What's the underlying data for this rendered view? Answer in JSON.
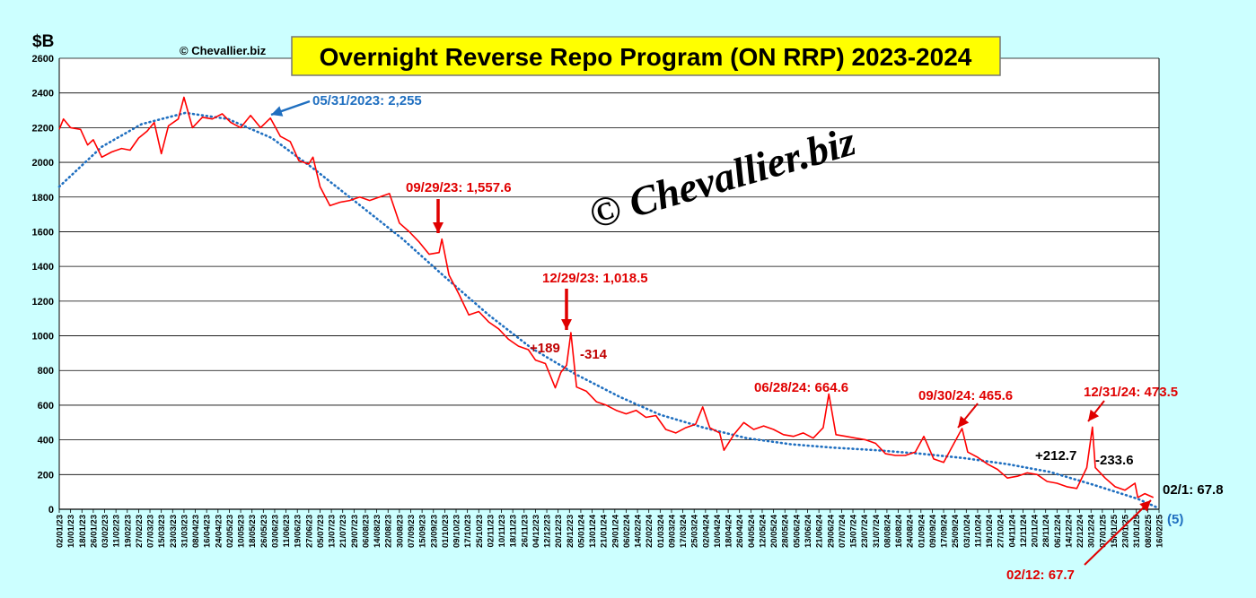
{
  "chart_data": {
    "type": "line",
    "title": "Overnight Reverse Repo Program (ON RRP) 2023-2024",
    "ylabel": "$B",
    "ylim": [
      0,
      2600
    ],
    "yticks": [
      0,
      200,
      400,
      600,
      800,
      1000,
      1200,
      1400,
      1600,
      1800,
      2000,
      2200,
      2400,
      2600
    ],
    "grid": "horizontal",
    "copyright_small": "© Chevallier.biz",
    "watermark": "© Chevallier.biz",
    "x_range": [
      "2023-01-02",
      "2025-02-16"
    ],
    "x_tick_labels": [
      "02/01/23",
      "10/01/23",
      "18/01/23",
      "26/01/23",
      "03/02/23",
      "11/02/23",
      "19/02/23",
      "27/02/23",
      "07/03/23",
      "15/03/23",
      "23/03/23",
      "31/03/23",
      "08/04/23",
      "16/04/23",
      "24/04/23",
      "02/05/23",
      "10/05/23",
      "18/05/23",
      "26/05/23",
      "03/06/23",
      "11/06/23",
      "19/06/23",
      "27/06/23",
      "05/07/23",
      "13/07/23",
      "21/07/23",
      "29/07/23",
      "06/08/23",
      "14/08/23",
      "22/08/23",
      "30/08/23",
      "07/09/23",
      "15/09/23",
      "23/09/23",
      "01/10/23",
      "09/10/23",
      "17/10/23",
      "25/10/23",
      "02/11/23",
      "10/11/23",
      "18/11/23",
      "26/11/23",
      "04/12/23",
      "12/12/23",
      "20/12/23",
      "28/12/23",
      "05/01/24",
      "13/01/24",
      "21/01/24",
      "29/01/24",
      "06/02/24",
      "14/02/24",
      "22/02/24",
      "01/03/24",
      "09/03/24",
      "17/03/24",
      "25/03/24",
      "02/04/24",
      "10/04/24",
      "18/04/24",
      "26/04/24",
      "04/05/24",
      "12/05/24",
      "20/05/24",
      "28/05/24",
      "05/06/24",
      "13/06/24",
      "21/06/24",
      "29/06/24",
      "07/07/24",
      "15/07/24",
      "23/07/24",
      "31/07/24",
      "08/08/24",
      "16/08/24",
      "24/08/24",
      "01/09/24",
      "09/09/24",
      "17/09/24",
      "25/09/24",
      "03/10/24",
      "11/10/24",
      "19/10/24",
      "27/10/24",
      "04/11/24",
      "12/11/24",
      "20/11/24",
      "28/11/24",
      "06/12/24",
      "14/12/24",
      "22/12/24",
      "30/12/24",
      "07/01/25",
      "15/01/25",
      "23/01/25",
      "31/01/25",
      "08/02/25",
      "16/02/25"
    ],
    "series": [
      {
        "color": "#ff0000",
        "data": [
          [
            "2023-01-02",
            2190
          ],
          [
            "2023-01-05",
            2250
          ],
          [
            "2023-01-10",
            2200
          ],
          [
            "2023-01-17",
            2190
          ],
          [
            "2023-01-22",
            2100
          ],
          [
            "2023-01-26",
            2130
          ],
          [
            "2023-02-01",
            2030
          ],
          [
            "2023-02-08",
            2060
          ],
          [
            "2023-02-15",
            2080
          ],
          [
            "2023-02-21",
            2070
          ],
          [
            "2023-02-27",
            2140
          ],
          [
            "2023-03-05",
            2180
          ],
          [
            "2023-03-10",
            2230
          ],
          [
            "2023-03-15",
            2050
          ],
          [
            "2023-03-20",
            2210
          ],
          [
            "2023-03-27",
            2250
          ],
          [
            "2023-03-31",
            2375
          ],
          [
            "2023-04-06",
            2200
          ],
          [
            "2023-04-13",
            2260
          ],
          [
            "2023-04-20",
            2250
          ],
          [
            "2023-04-27",
            2280
          ],
          [
            "2023-05-03",
            2230
          ],
          [
            "2023-05-10",
            2200
          ],
          [
            "2023-05-17",
            2270
          ],
          [
            "2023-05-24",
            2200
          ],
          [
            "2023-05-31",
            2255
          ],
          [
            "2023-06-07",
            2150
          ],
          [
            "2023-06-14",
            2120
          ],
          [
            "2023-06-20",
            2010
          ],
          [
            "2023-06-27",
            1990
          ],
          [
            "2023-06-30",
            2030
          ],
          [
            "2023-07-05",
            1860
          ],
          [
            "2023-07-12",
            1750
          ],
          [
            "2023-07-19",
            1770
          ],
          [
            "2023-07-26",
            1780
          ],
          [
            "2023-08-02",
            1800
          ],
          [
            "2023-08-09",
            1780
          ],
          [
            "2023-08-16",
            1800
          ],
          [
            "2023-08-23",
            1820
          ],
          [
            "2023-08-30",
            1650
          ],
          [
            "2023-09-06",
            1600
          ],
          [
            "2023-09-13",
            1540
          ],
          [
            "2023-09-20",
            1470
          ],
          [
            "2023-09-27",
            1480
          ],
          [
            "2023-09-29",
            1557.6
          ],
          [
            "2023-10-04",
            1350
          ],
          [
            "2023-10-11",
            1240
          ],
          [
            "2023-10-18",
            1120
          ],
          [
            "2023-10-25",
            1140
          ],
          [
            "2023-11-01",
            1080
          ],
          [
            "2023-11-08",
            1040
          ],
          [
            "2023-11-15",
            980
          ],
          [
            "2023-11-22",
            940
          ],
          [
            "2023-11-29",
            920
          ],
          [
            "2023-12-04",
            860
          ],
          [
            "2023-12-11",
            840
          ],
          [
            "2023-12-18",
            700
          ],
          [
            "2023-12-22",
            790
          ],
          [
            "2023-12-26",
            830
          ],
          [
            "2023-12-29",
            1018.5
          ],
          [
            "2024-01-02",
            704.5
          ],
          [
            "2024-01-09",
            680
          ],
          [
            "2024-01-16",
            620
          ],
          [
            "2024-01-23",
            600
          ],
          [
            "2024-01-30",
            570
          ],
          [
            "2024-02-06",
            550
          ],
          [
            "2024-02-13",
            570
          ],
          [
            "2024-02-20",
            530
          ],
          [
            "2024-02-27",
            540
          ],
          [
            "2024-03-05",
            460
          ],
          [
            "2024-03-12",
            440
          ],
          [
            "2024-03-19",
            470
          ],
          [
            "2024-03-26",
            490
          ],
          [
            "2024-03-31",
            590
          ],
          [
            "2024-04-05",
            470
          ],
          [
            "2024-04-12",
            440
          ],
          [
            "2024-04-15",
            340
          ],
          [
            "2024-04-22",
            430
          ],
          [
            "2024-04-29",
            500
          ],
          [
            "2024-05-06",
            460
          ],
          [
            "2024-05-13",
            480
          ],
          [
            "2024-05-20",
            460
          ],
          [
            "2024-05-27",
            430
          ],
          [
            "2024-06-03",
            420
          ],
          [
            "2024-06-10",
            440
          ],
          [
            "2024-06-17",
            410
          ],
          [
            "2024-06-24",
            470
          ],
          [
            "2024-06-28",
            664.6
          ],
          [
            "2024-07-03",
            430
          ],
          [
            "2024-07-10",
            420
          ],
          [
            "2024-07-17",
            410
          ],
          [
            "2024-07-24",
            400
          ],
          [
            "2024-07-31",
            380
          ],
          [
            "2024-08-07",
            320
          ],
          [
            "2024-08-14",
            310
          ],
          [
            "2024-08-21",
            310
          ],
          [
            "2024-08-28",
            330
          ],
          [
            "2024-09-03",
            420
          ],
          [
            "2024-09-10",
            290
          ],
          [
            "2024-09-17",
            270
          ],
          [
            "2024-09-23",
            360
          ],
          [
            "2024-09-30",
            465.6
          ],
          [
            "2024-10-04",
            330
          ],
          [
            "2024-10-11",
            300
          ],
          [
            "2024-10-18",
            260
          ],
          [
            "2024-10-25",
            230
          ],
          [
            "2024-11-01",
            180
          ],
          [
            "2024-11-08",
            190
          ],
          [
            "2024-11-15",
            210
          ],
          [
            "2024-11-22",
            200
          ],
          [
            "2024-11-29",
            160
          ],
          [
            "2024-12-06",
            150
          ],
          [
            "2024-12-13",
            130
          ],
          [
            "2024-12-20",
            120
          ],
          [
            "2024-12-27",
            240
          ],
          [
            "2024-12-31",
            473.5
          ],
          [
            "2025-01-02",
            239.9
          ],
          [
            "2025-01-09",
            180
          ],
          [
            "2025-01-16",
            130
          ],
          [
            "2025-01-23",
            110
          ],
          [
            "2025-01-30",
            150
          ],
          [
            "2025-02-01",
            67.8
          ],
          [
            "2025-02-06",
            90
          ],
          [
            "2025-02-12",
            67.7
          ]
        ]
      },
      {
        "color": "#1f6fc0",
        "style": "dotted",
        "data": [
          [
            "2023-01-02",
            1860
          ],
          [
            "2023-02-01",
            2090
          ],
          [
            "2023-03-01",
            2220
          ],
          [
            "2023-04-01",
            2285
          ],
          [
            "2023-05-01",
            2250
          ],
          [
            "2023-06-01",
            2140
          ],
          [
            "2023-07-01",
            1960
          ],
          [
            "2023-08-01",
            1760
          ],
          [
            "2023-09-01",
            1560
          ],
          [
            "2023-10-01",
            1340
          ],
          [
            "2023-11-01",
            1120
          ],
          [
            "2023-12-01",
            930
          ],
          [
            "2024-01-01",
            780
          ],
          [
            "2024-02-01",
            650
          ],
          [
            "2024-03-01",
            545
          ],
          [
            "2024-04-01",
            470
          ],
          [
            "2024-05-01",
            410
          ],
          [
            "2024-06-01",
            375
          ],
          [
            "2024-07-01",
            355
          ],
          [
            "2024-08-01",
            340
          ],
          [
            "2024-09-01",
            320
          ],
          [
            "2024-10-01",
            295
          ],
          [
            "2024-11-01",
            260
          ],
          [
            "2024-12-01",
            215
          ],
          [
            "2025-01-01",
            140
          ],
          [
            "2025-02-01",
            60
          ],
          [
            "2025-02-16",
            5
          ]
        ]
      }
    ],
    "annotations": [
      {
        "text": "05/31/2023: 2,255",
        "color": "#1f6fc0"
      },
      {
        "text": "09/29/23: 1,557.6",
        "color": "#e00000"
      },
      {
        "text": "12/29/23: 1,018.5",
        "color": "#e00000"
      },
      {
        "text": "+189",
        "color": "#c00000"
      },
      {
        "text": "-314",
        "color": "#c00000"
      },
      {
        "text": "06/28/24: 664.6",
        "color": "#e00000"
      },
      {
        "text": "09/30/24: 465.6",
        "color": "#e00000"
      },
      {
        "text": "12/31/24: 473.5",
        "color": "#e00000"
      },
      {
        "text": "+212.7",
        "color": "#000000"
      },
      {
        "text": "-233.6",
        "color": "#000000"
      },
      {
        "text": "02/1: 67.8",
        "color": "#000000"
      },
      {
        "text": "02/12: 67.7",
        "color": "#e00000"
      },
      {
        "text": "(5)",
        "color": "#1f6fc0"
      }
    ]
  }
}
